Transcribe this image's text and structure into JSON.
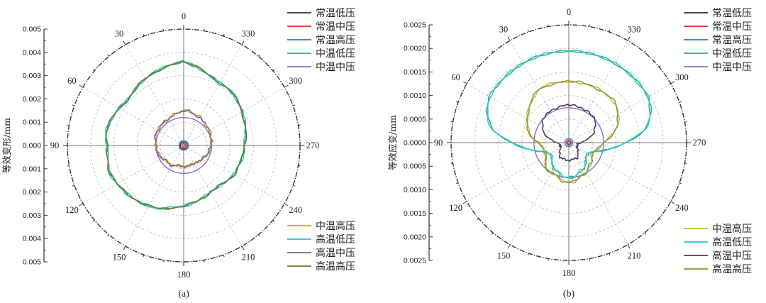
{
  "chart_data": [
    {
      "type": "polar-line",
      "panel_label": "(a)",
      "ylabel": "等效变形/mm",
      "ylim": [
        0,
        0.005
      ],
      "yticks": [
        "0.005",
        "0.004",
        "0.003",
        "0.002",
        "0.001",
        "0.000",
        "0.001",
        "0.002",
        "0.003",
        "0.004",
        "0.005"
      ],
      "angle_labels": [
        "0",
        "30",
        "60",
        "90",
        "120",
        "150",
        "180",
        "210",
        "240",
        "270",
        "300",
        "330"
      ],
      "legend_top": [
        "常温低压",
        "常温中压",
        "常温高压",
        "中温低压",
        "中温中压"
      ],
      "legend_bottom": [
        "中温高压",
        "高温低压",
        "高温中压",
        "高温高压"
      ],
      "series": [
        {
          "name": "常温低压",
          "color": "#333333",
          "r": 0.00015
        },
        {
          "name": "常温中压",
          "color": "#d62728",
          "r": 8e-05
        },
        {
          "name": "常温高压",
          "color": "#3a6fc8",
          "r": 0.0002
        },
        {
          "name": "中温低压",
          "color": "#2bb58a",
          "r": [
            0.0036,
            0.0035,
            0.0034,
            0.0033,
            0.0032,
            0.0031,
            0.0032,
            0.0033,
            0.0034,
            0.0033,
            0.0033,
            0.0034,
            0.0033,
            0.0032,
            0.0031,
            0.003,
            0.0029,
            0.0027,
            0.0026,
            0.0025,
            0.0024,
            0.0023,
            0.0023,
            0.0024,
            0.0025,
            0.0025,
            0.0026,
            0.0026,
            0.0027,
            0.0028,
            0.0029,
            0.003,
            0.0031,
            0.0031,
            0.0032,
            0.0034,
            0.0036
          ]
        },
        {
          "name": "中温中压",
          "color": "#8c6bd6",
          "r": 0.0012
        },
        {
          "name": "中温高压",
          "color": "#d4a017",
          "r": [
            0.0015,
            0.0014,
            0.0014,
            0.0013,
            0.0013,
            0.0013,
            0.0013,
            0.0013,
            0.0012,
            0.0012,
            0.0012,
            0.0011,
            0.0011,
            0.001,
            0.001,
            0.001,
            0.0009,
            0.0009,
            0.0009,
            0.0009,
            0.0009,
            0.0009,
            0.0009,
            0.001,
            0.001,
            0.0011,
            0.0011,
            0.0012,
            0.0012,
            0.0012,
            0.0013,
            0.0013,
            0.0013,
            0.0014,
            0.0014,
            0.0015,
            0.0015
          ]
        },
        {
          "name": "高温低压",
          "color": "#2ec4c4",
          "r": [
            0.0036,
            0.0035,
            0.0034,
            0.0033,
            0.0032,
            0.0031,
            0.0032,
            0.0033,
            0.0034,
            0.0033,
            0.0033,
            0.0034,
            0.0033,
            0.0032,
            0.0031,
            0.003,
            0.0029,
            0.0027,
            0.0026,
            0.0025,
            0.0024,
            0.0023,
            0.0023,
            0.0024,
            0.0025,
            0.0025,
            0.0026,
            0.0026,
            0.0027,
            0.0028,
            0.0029,
            0.003,
            0.0031,
            0.0031,
            0.0032,
            0.0034,
            0.0036
          ]
        },
        {
          "name": "高温中压",
          "color": "#7a6a8a",
          "r": [
            0.00145,
            0.0014,
            0.0014,
            0.0013,
            0.0013,
            0.0013,
            0.0013,
            0.0013,
            0.0012,
            0.0012,
            0.0012,
            0.0011,
            0.0011,
            0.001,
            0.001,
            0.001,
            0.0009,
            0.0009,
            0.0009,
            0.0009,
            0.0009,
            0.0009,
            0.0009,
            0.001,
            0.001,
            0.0011,
            0.0011,
            0.0012,
            0.0012,
            0.0012,
            0.0013,
            0.0013,
            0.0013,
            0.0014,
            0.0014,
            0.0015,
            0.00145
          ]
        },
        {
          "name": "高温高压",
          "color": "#6b7a2a",
          "r": [
            0.0036,
            0.0035,
            0.0034,
            0.0033,
            0.0032,
            0.0031,
            0.0032,
            0.0033,
            0.0034,
            0.0033,
            0.0033,
            0.0034,
            0.0033,
            0.0032,
            0.0031,
            0.003,
            0.0029,
            0.0027,
            0.0026,
            0.0025,
            0.0024,
            0.0023,
            0.0023,
            0.0024,
            0.0025,
            0.0025,
            0.0026,
            0.0026,
            0.0027,
            0.0028,
            0.0029,
            0.003,
            0.0031,
            0.0031,
            0.0032,
            0.0034,
            0.0036
          ]
        }
      ]
    },
    {
      "type": "polar-line",
      "panel_label": "(b)",
      "ylabel": "等效应变/mm",
      "ylim": [
        0,
        0.0027
      ],
      "yticks": [
        "0.0025",
        "0.0020",
        "0.0015",
        "0.0010",
        "0.0005",
        "0.0000",
        "0.0005",
        "0.0010",
        "0.0015",
        "0.0020",
        "0.0025"
      ],
      "angle_labels": [
        "0",
        "30",
        "60",
        "90",
        "120",
        "150",
        "180",
        "210",
        "240",
        "270",
        "300",
        "330"
      ],
      "legend_top": [
        "常温低压",
        "常温中压",
        "常温高压",
        "中温低压",
        "中温中压"
      ],
      "legend_bottom": [
        "中温高压",
        "高温低压",
        "高温中压",
        "高温高压"
      ],
      "series": [
        {
          "name": "常温低压",
          "color": "#333333",
          "r": 5e-05
        },
        {
          "name": "常温中压",
          "color": "#d62728",
          "r": 4e-05
        },
        {
          "name": "常温高压",
          "color": "#3a6fc8",
          "r": 9e-05
        },
        {
          "name": "中温低压",
          "color": "#2bb58a",
          "r": [
            0.0021,
            0.0021,
            0.0021,
            0.0021,
            0.0021,
            0.0021,
            0.0021,
            0.002,
            0.0018,
            0.0013,
            0.0009,
            0.0006,
            0.0005,
            0.0005,
            0.0006,
            0.0007,
            0.0007,
            0.0008,
            0.0008,
            0.0008,
            0.0007,
            0.0007,
            0.0006,
            0.0005,
            0.0005,
            0.0006,
            0.0009,
            0.0013,
            0.0018,
            0.002,
            0.0021,
            0.0021,
            0.0021,
            0.0021,
            0.0021,
            0.0021,
            0.0021
          ]
        },
        {
          "name": "中温中压",
          "color": "#8c6bd6",
          "r": 0.0008
        },
        {
          "name": "中温高压",
          "color": "#c8b44a",
          "r": [
            0.0014,
            0.0014,
            0.0014,
            0.0014,
            0.0013,
            0.0012,
            0.0011,
            0.001,
            0.0009,
            0.0007,
            0.0006,
            0.0006,
            0.0006,
            0.0007,
            0.0008,
            0.0008,
            0.0008,
            0.0009,
            0.0009,
            0.0009,
            0.0008,
            0.0008,
            0.0007,
            0.0007,
            0.0006,
            0.0006,
            0.0007,
            0.0008,
            0.001,
            0.0012,
            0.0013,
            0.0014,
            0.0014,
            0.0014,
            0.0014,
            0.0014,
            0.0014
          ]
        },
        {
          "name": "高温低压",
          "color": "#2ec4c4",
          "r": [
            0.0021,
            0.0021,
            0.0021,
            0.0021,
            0.0021,
            0.0021,
            0.0021,
            0.002,
            0.0018,
            0.0013,
            0.0009,
            0.0006,
            0.0005,
            0.0005,
            0.0006,
            0.0007,
            0.0007,
            0.0008,
            0.0008,
            0.0008,
            0.0007,
            0.0007,
            0.0006,
            0.0005,
            0.0005,
            0.0006,
            0.0009,
            0.0013,
            0.0018,
            0.002,
            0.0021,
            0.0021,
            0.0021,
            0.0021,
            0.0021,
            0.0021,
            0.0021
          ]
        },
        {
          "name": "高温中压",
          "color": "#4a3a5a",
          "r": [
            0.00085,
            0.00085,
            0.00085,
            0.00085,
            0.0008,
            0.0008,
            0.0007,
            0.0006,
            0.0004,
            0.0003,
            0.0002,
            0.0002,
            0.0002,
            0.0003,
            0.0003,
            0.0004,
            0.0004,
            0.0004,
            0.0004,
            0.0004,
            0.0004,
            0.0004,
            0.0003,
            0.0003,
            0.0002,
            0.0002,
            0.0002,
            0.0003,
            0.0004,
            0.0006,
            0.0007,
            0.0008,
            0.0008,
            0.00085,
            0.00085,
            0.00085,
            0.00085
          ]
        },
        {
          "name": "高温高压",
          "color": "#8a9a3a",
          "r": [
            0.0014,
            0.0014,
            0.0014,
            0.0014,
            0.0013,
            0.0012,
            0.0011,
            0.001,
            0.0009,
            0.0007,
            0.0006,
            0.0006,
            0.0006,
            0.0007,
            0.0008,
            0.0008,
            0.0008,
            0.0009,
            0.0009,
            0.0009,
            0.0008,
            0.0008,
            0.0007,
            0.0007,
            0.0006,
            0.0006,
            0.0007,
            0.0008,
            0.001,
            0.0012,
            0.0013,
            0.0014,
            0.0014,
            0.0014,
            0.0014,
            0.0014,
            0.0014
          ]
        }
      ]
    }
  ]
}
